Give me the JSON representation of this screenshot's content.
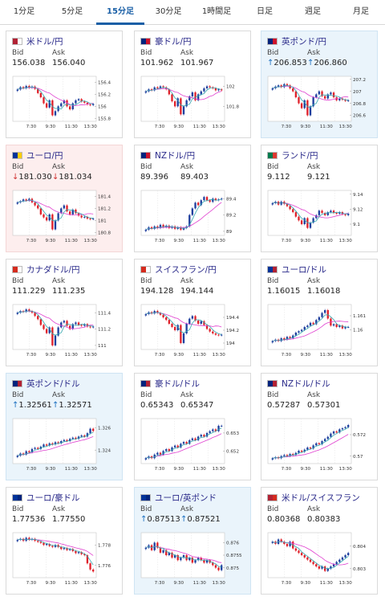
{
  "tabs": [
    {
      "label": "1分足",
      "active": false
    },
    {
      "label": "5分足",
      "active": false
    },
    {
      "label": "15分足",
      "active": true
    },
    {
      "label": "30分足",
      "active": false
    },
    {
      "label": "1時間足",
      "active": false
    },
    {
      "label": "日足",
      "active": false
    },
    {
      "label": "週足",
      "active": false
    },
    {
      "label": "月足",
      "active": false
    }
  ],
  "labels": {
    "bid": "Bid",
    "ask": "Ask"
  },
  "colors": {
    "up_candle": "#1f3f9e",
    "down_candle": "#e0202a",
    "ma_pink": "#e040d0",
    "ma_teal": "#36a8b0",
    "up_arrow": "#1a6fc0",
    "down_arrow": "#d03030"
  },
  "cards": [
    {
      "pair": "米ドル/円",
      "bid": "156.038",
      "ask": "156.040",
      "trend": "none",
      "flags": [
        "#b22234",
        "#ffffff"
      ],
      "chart": {
        "yticks": [
          "156.4",
          "156.2",
          "156",
          "155.8"
        ],
        "ymin": 155.75,
        "ymax": 156.5,
        "xticks": [
          "7:30",
          "9:30",
          "11:30",
          "13:30"
        ],
        "close": [
          156.28,
          156.32,
          156.3,
          156.34,
          156.31,
          156.33,
          156.29,
          156.22,
          156.15,
          156.05,
          155.98,
          156.1,
          155.85,
          155.92,
          156.0,
          156.05,
          156.1,
          156.0,
          155.95,
          156.05,
          156.1,
          156.12,
          156.08,
          156.06,
          156.03,
          156.02,
          156.04
        ]
      }
    },
    {
      "pair": "豪ドル/円",
      "bid": "101.962",
      "ask": "101.967",
      "trend": "none",
      "flags": [
        "#00247d",
        "#cc142b"
      ],
      "chart": {
        "yticks": [
          "102",
          "101.8"
        ],
        "ymin": 101.65,
        "ymax": 102.1,
        "xticks": [
          "7:30",
          "9:30",
          "11:30",
          "13:30"
        ],
        "close": [
          101.95,
          101.97,
          101.96,
          101.99,
          101.98,
          102.0,
          101.99,
          101.97,
          101.92,
          101.85,
          101.8,
          101.88,
          101.72,
          101.8,
          101.86,
          101.9,
          101.94,
          101.86,
          101.92,
          101.95,
          101.98,
          102.0,
          101.99,
          101.98,
          101.96,
          101.97,
          101.96
        ]
      }
    },
    {
      "pair": "英ポンド/円",
      "bid": "206.853",
      "ask": "206.860",
      "trend": "up",
      "flags": [
        "#00247d",
        "#cf142b"
      ],
      "chart": {
        "yticks": [
          "207.2",
          "207",
          "206.8",
          "206.6"
        ],
        "ymin": 206.5,
        "ymax": 207.25,
        "xticks": [
          "7:30",
          "9:30",
          "11:30",
          "13:30"
        ],
        "close": [
          207.05,
          207.08,
          207.1,
          207.07,
          207.12,
          207.1,
          207.05,
          207.0,
          206.9,
          206.8,
          206.72,
          206.85,
          206.6,
          206.75,
          206.9,
          206.95,
          207.0,
          206.92,
          206.88,
          206.95,
          206.98,
          206.9,
          206.85,
          206.88,
          206.86,
          206.84,
          206.85
        ]
      }
    },
    {
      "pair": "ユーロ/円",
      "bid": "181.030",
      "ask": "181.034",
      "trend": "down",
      "flags": [
        "#003399",
        "#ffcc00"
      ],
      "chart": {
        "yticks": [
          "181.4",
          "181.2",
          "181",
          "180.8"
        ],
        "ymin": 180.75,
        "ymax": 181.5,
        "xticks": [
          "7:30",
          "9:30",
          "11:30",
          "13:30"
        ],
        "close": [
          181.3,
          181.32,
          181.35,
          181.33,
          181.36,
          181.3,
          181.25,
          181.2,
          181.1,
          181.05,
          181.0,
          181.1,
          180.85,
          181.0,
          181.12,
          181.2,
          181.25,
          181.15,
          181.1,
          181.18,
          181.12,
          181.08,
          181.05,
          181.06,
          181.03,
          181.02,
          181.03
        ]
      }
    },
    {
      "pair": "NZドル/円",
      "bid": "89.396",
      "ask": "89.403",
      "trend": "none",
      "flags": [
        "#00247d",
        "#cc142b"
      ],
      "chart": {
        "yticks": [
          "89.4",
          "89.2",
          "89"
        ],
        "ymin": 88.95,
        "ymax": 89.5,
        "xticks": [
          "7:30",
          "9:30",
          "11:30",
          "13:30"
        ],
        "close": [
          89.02,
          89.05,
          89.03,
          89.06,
          89.04,
          89.08,
          89.05,
          89.07,
          89.04,
          89.06,
          89.03,
          89.05,
          89.02,
          89.04,
          89.06,
          89.2,
          89.28,
          89.35,
          89.32,
          89.38,
          89.42,
          89.38,
          89.36,
          89.4,
          89.38,
          89.39,
          89.4
        ]
      }
    },
    {
      "pair": "ランド/円",
      "bid": "9.112",
      "ask": "9.121",
      "trend": "none",
      "flags": [
        "#007a4d",
        "#de3831"
      ],
      "chart": {
        "yticks": [
          "9.14",
          "9.12",
          "9.1"
        ],
        "ymin": 9.085,
        "ymax": 9.145,
        "xticks": [
          "7:30",
          "9:30",
          "11:30",
          "13:30"
        ],
        "close": [
          9.128,
          9.13,
          9.126,
          9.13,
          9.127,
          9.124,
          9.12,
          9.116,
          9.11,
          9.105,
          9.1,
          9.108,
          9.095,
          9.102,
          9.108,
          9.112,
          9.118,
          9.115,
          9.112,
          9.116,
          9.118,
          9.115,
          9.114,
          9.116,
          9.113,
          9.112,
          9.114
        ]
      }
    },
    {
      "pair": "カナダドル/円",
      "bid": "111.229",
      "ask": "111.235",
      "trend": "none",
      "flags": [
        "#d52b1e",
        "#ffffff"
      ],
      "chart": {
        "yticks": [
          "111.4",
          "111.2",
          "111"
        ],
        "ymin": 110.95,
        "ymax": 111.5,
        "xticks": [
          "7:30",
          "9:30",
          "11:30",
          "13:30"
        ],
        "close": [
          111.4,
          111.42,
          111.41,
          111.44,
          111.42,
          111.4,
          111.36,
          111.32,
          111.25,
          111.2,
          111.15,
          111.22,
          111.0,
          111.12,
          111.22,
          111.28,
          111.3,
          111.24,
          111.2,
          111.26,
          111.28,
          111.25,
          111.24,
          111.26,
          111.23,
          111.22,
          111.23
        ]
      }
    },
    {
      "pair": "スイスフラン/円",
      "bid": "194.128",
      "ask": "194.144",
      "trend": "none",
      "flags": [
        "#d52b1e",
        "#ffffff"
      ],
      "chart": {
        "yticks": [
          "194.4",
          "194.2",
          "194"
        ],
        "ymin": 193.9,
        "ymax": 194.6,
        "xticks": [
          "7:30",
          "9:30",
          "11:30",
          "13:30"
        ],
        "close": [
          194.45,
          194.48,
          194.46,
          194.5,
          194.47,
          194.44,
          194.4,
          194.36,
          194.3,
          194.25,
          194.2,
          194.28,
          194.0,
          194.15,
          194.3,
          194.38,
          194.42,
          194.35,
          194.3,
          194.34,
          194.28,
          194.22,
          194.18,
          194.15,
          194.13,
          194.12,
          194.13
        ]
      }
    },
    {
      "pair": "ユーロ/ドル",
      "bid": "1.16015",
      "ask": "1.16018",
      "trend": "none",
      "flags": [
        "#003399",
        "#b22234"
      ],
      "chart": {
        "yticks": [
          "1.161",
          "1.16"
        ],
        "ymin": 1.1586,
        "ymax": 1.1618,
        "xticks": [
          "7:30",
          "9:30",
          "11:30",
          "13:30"
        ],
        "close": [
          1.1592,
          1.1593,
          1.1592,
          1.1594,
          1.1593,
          1.1595,
          1.1594,
          1.1596,
          1.1598,
          1.1599,
          1.16,
          1.1602,
          1.1603,
          1.1605,
          1.1604,
          1.1607,
          1.1609,
          1.1612,
          1.1614,
          1.1608,
          1.1603,
          1.1604,
          1.1602,
          1.1603,
          1.1601,
          1.1602,
          1.1602
        ]
      }
    },
    {
      "pair": "英ポンド/ドル",
      "bid": "1.32561",
      "ask": "1.32571",
      "trend": "up",
      "flags": [
        "#00247d",
        "#b22234"
      ],
      "chart": {
        "yticks": [
          "1.326",
          "1.324"
        ],
        "ymin": 1.3228,
        "ymax": 1.3268,
        "xticks": [
          "7:30",
          "9:30",
          "11:30",
          "13:30"
        ],
        "close": [
          1.3235,
          1.3237,
          1.3236,
          1.3239,
          1.3238,
          1.3241,
          1.3242,
          1.3241,
          1.3243,
          1.3245,
          1.3244,
          1.3246,
          1.3245,
          1.3247,
          1.3246,
          1.3248,
          1.3249,
          1.3248,
          1.325,
          1.3251,
          1.325,
          1.3252,
          1.3253,
          1.3252,
          1.3255,
          1.3259,
          1.3257
        ]
      }
    },
    {
      "pair": "豪ドル/ドル",
      "bid": "0.65343",
      "ask": "0.65347",
      "trend": "none",
      "flags": [
        "#00247d",
        "#b22234"
      ],
      "chart": {
        "yticks": [
          "0.653",
          "0.652"
        ],
        "ymin": 0.6513,
        "ymax": 0.6538,
        "xticks": [
          "7:30",
          "9:30",
          "11:30",
          "13:30"
        ],
        "close": [
          0.6516,
          0.6517,
          0.6516,
          0.6518,
          0.6519,
          0.6518,
          0.652,
          0.6521,
          0.652,
          0.6522,
          0.6523,
          0.6522,
          0.6524,
          0.6525,
          0.6524,
          0.6526,
          0.6527,
          0.6526,
          0.6528,
          0.6529,
          0.6528,
          0.653,
          0.6531,
          0.6532,
          0.6531,
          0.6534,
          0.6534
        ]
      }
    },
    {
      "pair": "NZドル/ドル",
      "bid": "0.57287",
      "ask": "0.57301",
      "trend": "none",
      "flags": [
        "#00247d",
        "#b22234"
      ],
      "chart": {
        "yticks": [
          "0.572",
          "0.57"
        ],
        "ymin": 0.5693,
        "ymax": 0.5735,
        "xticks": [
          "7:30",
          "9:30",
          "11:30",
          "13:30"
        ],
        "close": [
          0.5698,
          0.5699,
          0.5698,
          0.57,
          0.5701,
          0.57,
          0.5702,
          0.5701,
          0.5703,
          0.5705,
          0.5704,
          0.5706,
          0.5708,
          0.5707,
          0.571,
          0.5712,
          0.5711,
          0.5714,
          0.5716,
          0.5718,
          0.5721,
          0.5723,
          0.5722,
          0.5725,
          0.5726,
          0.5727,
          0.5729
        ]
      }
    },
    {
      "pair": "ユーロ/豪ドル",
      "bid": "1.77536",
      "ask": "1.77550",
      "trend": "none",
      "flags": [
        "#003399",
        "#00247d"
      ],
      "chart": {
        "yticks": [
          "1.778",
          "1.776"
        ],
        "ymin": 1.7748,
        "ymax": 1.7792,
        "xticks": [
          "7:30",
          "9:30",
          "11:30",
          "13:30"
        ],
        "close": [
          1.7785,
          1.7786,
          1.7784,
          1.7787,
          1.7785,
          1.7786,
          1.7784,
          1.7783,
          1.7782,
          1.778,
          1.7781,
          1.7779,
          1.7778,
          1.778,
          1.7778,
          1.7776,
          1.7777,
          1.7775,
          1.7776,
          1.7774,
          1.7772,
          1.7773,
          1.7771,
          1.777,
          1.7762,
          1.7756,
          1.7754
        ]
      }
    },
    {
      "pair": "ユーロ/英ポンド",
      "bid": "0.87513",
      "ask": "0.87521",
      "trend": "up",
      "flags": [
        "#003399",
        "#00247d"
      ],
      "chart": {
        "yticks": [
          "0.876",
          "0.8755",
          "0.875"
        ],
        "ymin": 0.8746,
        "ymax": 0.8764,
        "xticks": [
          "7:30",
          "9:30",
          "11:30",
          "13:30"
        ],
        "close": [
          0.8758,
          0.8759,
          0.8757,
          0.876,
          0.8758,
          0.8756,
          0.8757,
          0.8755,
          0.8756,
          0.8754,
          0.8755,
          0.8753,
          0.8754,
          0.8755,
          0.8753,
          0.8754,
          0.8752,
          0.8753,
          0.8754,
          0.8753,
          0.8752,
          0.8753,
          0.8752,
          0.8751,
          0.875,
          0.8749,
          0.8751
        ]
      }
    },
    {
      "pair": "米ドル/スイスフラン",
      "bid": "0.80368",
      "ask": "0.80383",
      "trend": "none",
      "flags": [
        "#b22234",
        "#d52b1e"
      ],
      "chart": {
        "yticks": [
          "0.804",
          "0.803"
        ],
        "ymin": 0.8026,
        "ymax": 0.8046,
        "xticks": [
          "7:30",
          "9:30",
          "11:30",
          "13:30"
        ],
        "close": [
          0.8042,
          0.8041,
          0.8043,
          0.8042,
          0.8041,
          0.804,
          0.8042,
          0.8039,
          0.8038,
          0.8037,
          0.8036,
          0.8035,
          0.8034,
          0.8033,
          0.8032,
          0.8031,
          0.803,
          0.8031,
          0.8029,
          0.803,
          0.8031,
          0.8032,
          0.8033,
          0.8034,
          0.8035,
          0.8036,
          0.8037
        ]
      }
    }
  ]
}
